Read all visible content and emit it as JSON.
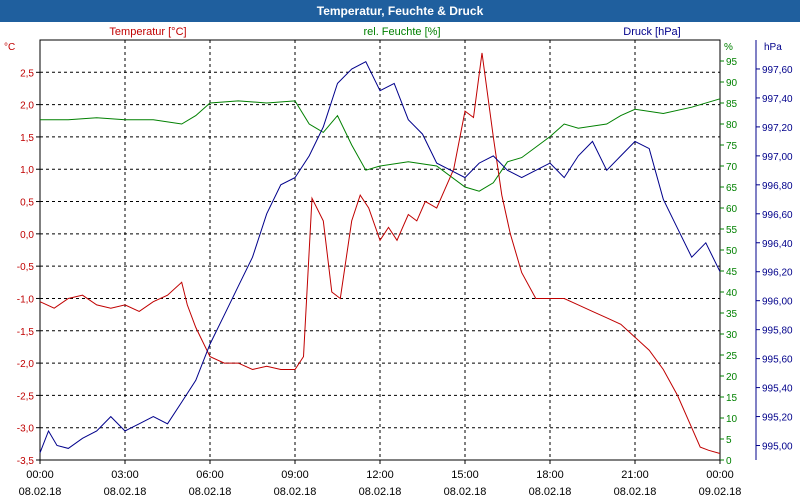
{
  "window": {
    "title": "Temperatur, Feuchte & Druck"
  },
  "colors": {
    "title_bg": "#1f5f9e",
    "temperature": "#c00000",
    "humidity": "#008000",
    "pressure": "#00008b",
    "grid": "#000000",
    "axis": "#000000"
  },
  "chart_data": {
    "type": "line",
    "title": "Temperatur, Feuchte & Druck",
    "x_ticks": [
      {
        "time": "00:00",
        "date": "08.02.18"
      },
      {
        "time": "03:00",
        "date": "08.02.18"
      },
      {
        "time": "06:00",
        "date": "08.02.18"
      },
      {
        "time": "09:00",
        "date": "08.02.18"
      },
      {
        "time": "12:00",
        "date": "08.02.18"
      },
      {
        "time": "15:00",
        "date": "08.02.18"
      },
      {
        "time": "18:00",
        "date": "08.02.18"
      },
      {
        "time": "21:00",
        "date": "08.02.18"
      },
      {
        "time": "00:00",
        "date": "09.02.18"
      }
    ],
    "x_range_hours": [
      0,
      24
    ],
    "axes": {
      "left": {
        "unit": "°C",
        "label": "Temperatur [°C]",
        "range": [
          -3.5,
          3.0
        ],
        "ticks": [
          {
            "v": 2.5,
            "label": "2,5"
          },
          {
            "v": 2.0,
            "label": "2,0"
          },
          {
            "v": 1.5,
            "label": "1,5"
          },
          {
            "v": 1.0,
            "label": "1,0"
          },
          {
            "v": 0.5,
            "label": "0,5"
          },
          {
            "v": 0.0,
            "label": "0,0"
          },
          {
            "v": -0.5,
            "label": "-0,5"
          },
          {
            "v": -1.0,
            "label": "-1,0"
          },
          {
            "v": -1.5,
            "label": "-1,5"
          },
          {
            "v": -2.0,
            "label": "-2,0"
          },
          {
            "v": -2.5,
            "label": "-2,5"
          },
          {
            "v": -3.0,
            "label": "-3,0"
          },
          {
            "v": -3.5,
            "label": "-3,5"
          }
        ]
      },
      "middle": {
        "unit": "%",
        "label": "rel. Feuchte [%]",
        "range": [
          0,
          100
        ],
        "ticks": [
          {
            "v": 95,
            "label": "95"
          },
          {
            "v": 90,
            "label": "90"
          },
          {
            "v": 85,
            "label": "85"
          },
          {
            "v": 80,
            "label": "80"
          },
          {
            "v": 75,
            "label": "75"
          },
          {
            "v": 70,
            "label": "70"
          },
          {
            "v": 65,
            "label": "65"
          },
          {
            "v": 60,
            "label": "60"
          },
          {
            "v": 55,
            "label": "55"
          },
          {
            "v": 50,
            "label": "50"
          },
          {
            "v": 45,
            "label": "45"
          },
          {
            "v": 40,
            "label": "40"
          },
          {
            "v": 35,
            "label": "35"
          },
          {
            "v": 30,
            "label": "30"
          },
          {
            "v": 25,
            "label": "25"
          },
          {
            "v": 20,
            "label": "20"
          },
          {
            "v": 15,
            "label": "15"
          },
          {
            "v": 10,
            "label": "10"
          },
          {
            "v": 5,
            "label": "5"
          },
          {
            "v": 0,
            "label": "0"
          }
        ]
      },
      "right": {
        "unit": "hPa",
        "label": "Druck [hPa]",
        "range": [
          994.9,
          997.8
        ],
        "ticks": [
          {
            "v": 997.6,
            "label": "997,60"
          },
          {
            "v": 997.4,
            "label": "997,40"
          },
          {
            "v": 997.2,
            "label": "997,20"
          },
          {
            "v": 997.0,
            "label": "997,00"
          },
          {
            "v": 996.8,
            "label": "996,80"
          },
          {
            "v": 996.6,
            "label": "996,60"
          },
          {
            "v": 996.4,
            "label": "996,40"
          },
          {
            "v": 996.2,
            "label": "996,20"
          },
          {
            "v": 996.0,
            "label": "996,00"
          },
          {
            "v": 995.8,
            "label": "995,80"
          },
          {
            "v": 995.6,
            "label": "995,60"
          },
          {
            "v": 995.4,
            "label": "995,40"
          },
          {
            "v": 995.2,
            "label": "995,20"
          },
          {
            "v": 995.0,
            "label": "995,00"
          }
        ]
      }
    },
    "series": [
      {
        "name": "Temperatur [°C]",
        "axis": "left",
        "color": "#c00000",
        "x": [
          0,
          0.5,
          1,
          1.5,
          2,
          2.5,
          3,
          3.5,
          4,
          4.5,
          5,
          5.2,
          5.5,
          6,
          6.5,
          7,
          7.5,
          8,
          8.5,
          9,
          9.3,
          9.6,
          10,
          10.3,
          10.6,
          11,
          11.3,
          11.6,
          12,
          12.3,
          12.6,
          13,
          13.3,
          13.6,
          14,
          14.3,
          14.6,
          15,
          15.3,
          15.6,
          16,
          16.3,
          16.6,
          17,
          17.5,
          18,
          18.5,
          19,
          19.5,
          20,
          20.5,
          21,
          21.5,
          22,
          22.5,
          23,
          23.3,
          23.6,
          24
        ],
        "values": [
          -1.05,
          -1.15,
          -1.0,
          -0.95,
          -1.1,
          -1.15,
          -1.1,
          -1.2,
          -1.05,
          -0.95,
          -0.75,
          -1.1,
          -1.45,
          -1.9,
          -2.0,
          -2.0,
          -2.1,
          -2.05,
          -2.1,
          -2.1,
          -1.9,
          0.55,
          0.2,
          -0.9,
          -1.0,
          0.2,
          0.6,
          0.4,
          -0.1,
          0.1,
          -0.1,
          0.3,
          0.2,
          0.5,
          0.4,
          0.7,
          1.0,
          1.9,
          1.8,
          2.8,
          1.5,
          0.6,
          0.0,
          -0.6,
          -1.0,
          -1.0,
          -1.0,
          -1.1,
          -1.2,
          -1.3,
          -1.4,
          -1.6,
          -1.8,
          -2.1,
          -2.5,
          -3.0,
          -3.3,
          -3.35,
          -3.4
        ]
      },
      {
        "name": "rel. Feuchte [%]",
        "axis": "middle",
        "color": "#008000",
        "x": [
          0,
          1,
          2,
          3,
          4,
          5,
          5.5,
          6,
          7,
          8,
          9,
          9.5,
          10,
          10.5,
          11,
          11.5,
          12,
          13,
          14,
          15,
          15.5,
          16,
          16.5,
          17,
          18,
          18.5,
          19,
          20,
          20.5,
          21,
          22,
          23,
          24
        ],
        "values": [
          81,
          81,
          81.5,
          81,
          81,
          80,
          82,
          85,
          85.5,
          85,
          85.5,
          80,
          78,
          82,
          75,
          69,
          70,
          71,
          70,
          65,
          64,
          66,
          71,
          72,
          77,
          80,
          79,
          80,
          82,
          83.5,
          82.5,
          84,
          86
        ]
      },
      {
        "name": "Druck [hPa]",
        "axis": "right",
        "color": "#00008b",
        "x": [
          0,
          0.3,
          0.6,
          1,
          1.5,
          2,
          2.5,
          3,
          3.5,
          4,
          4.5,
          5,
          5.5,
          6,
          6.5,
          7,
          7.5,
          8,
          8.5,
          9,
          9.5,
          10,
          10.5,
          11,
          11.5,
          12,
          12.5,
          13,
          13.5,
          14,
          14.5,
          15,
          15.5,
          16,
          16.5,
          17,
          17.5,
          18,
          18.5,
          19,
          19.5,
          20,
          20.5,
          21,
          21.5,
          22,
          22.5,
          23,
          23.5,
          24
        ],
        "values": [
          994.95,
          995.1,
          995.0,
          994.98,
          995.05,
          995.1,
          995.2,
          995.1,
          995.15,
          995.2,
          995.15,
          995.3,
          995.45,
          995.7,
          995.9,
          996.1,
          996.3,
          996.6,
          996.8,
          996.85,
          997.0,
          997.2,
          997.5,
          997.6,
          997.65,
          997.45,
          997.5,
          997.25,
          997.15,
          996.95,
          996.9,
          996.85,
          996.95,
          997.0,
          996.9,
          996.85,
          996.9,
          996.95,
          996.85,
          997.0,
          997.1,
          996.9,
          997.0,
          997.1,
          997.05,
          996.7,
          996.5,
          996.3,
          996.4,
          996.2
        ]
      }
    ]
  }
}
